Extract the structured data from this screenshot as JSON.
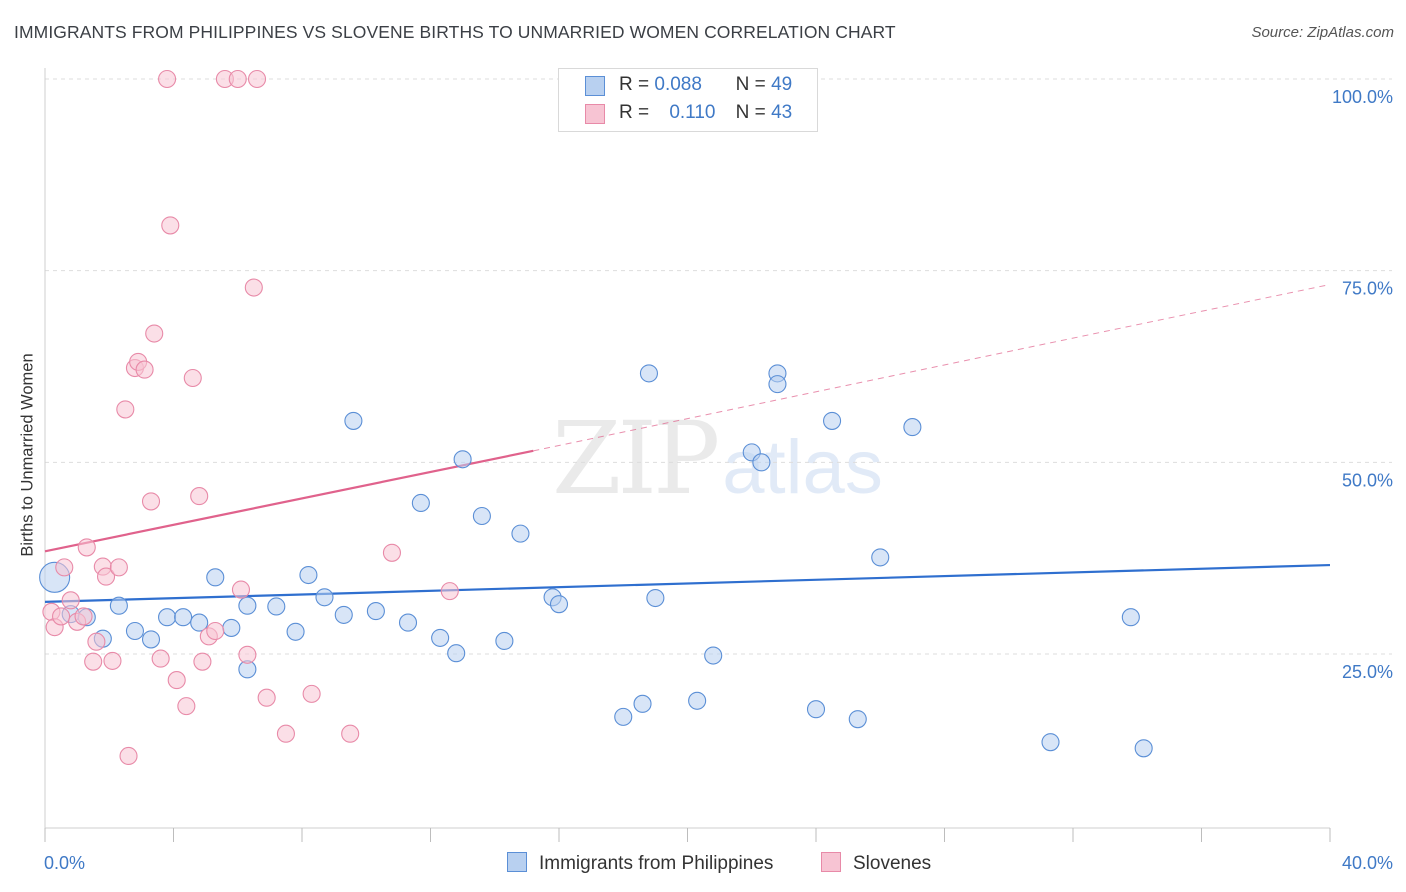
{
  "title": "IMMIGRANTS FROM PHILIPPINES VS SLOVENE BIRTHS TO UNMARRIED WOMEN CORRELATION CHART",
  "source": "Source: ZipAtlas.com",
  "watermark": {
    "zip": "ZIP",
    "atlas": "atlas"
  },
  "colors": {
    "blue_fill": "#b8d0f0",
    "blue_stroke": "#5b8fd6",
    "blue_line": "#2f6fcf",
    "pink_fill": "#f7c4d3",
    "pink_stroke": "#e88aa8",
    "pink_line": "#e0628c",
    "tick_text": "#3f79c6",
    "grid": "#dddddd"
  },
  "legend": {
    "r_label": "R =",
    "n_label": "N =",
    "rows": [
      {
        "r": "0.088",
        "n": "49"
      },
      {
        "r": "0.110",
        "n": "43"
      }
    ]
  },
  "bottom_legend": [
    {
      "label": "Immigrants from Philippines"
    },
    {
      "label": "Slovenes"
    }
  ],
  "chart_data": {
    "type": "scatter",
    "title": "IMMIGRANTS FROM PHILIPPINES VS SLOVENE BIRTHS TO UNMARRIED WOMEN CORRELATION CHART",
    "xlabel": "",
    "ylabel": "Births to Unmarried Women",
    "xlim": [
      0,
      40
    ],
    "ylim": [
      0,
      103
    ],
    "x_tick_labels": [
      "0.0%",
      "40.0%"
    ],
    "y_ticks": [
      25,
      50,
      75,
      100
    ],
    "y_tick_labels": [
      "25.0%",
      "50.0%",
      "75.0%",
      "100.0%"
    ],
    "grid": true,
    "legend_position": "top-center",
    "series": [
      {
        "name": "Immigrants from Philippines",
        "color": "#b8d0f0",
        "trend": {
          "x": [
            0,
            40
          ],
          "y": [
            31.8,
            36.6
          ],
          "extrapolated": false
        },
        "points": [
          {
            "x": 0.3,
            "y": 35.0,
            "big": true
          },
          {
            "x": 0.8,
            "y": 30.2
          },
          {
            "x": 1.3,
            "y": 29.8
          },
          {
            "x": 1.8,
            "y": 27.0
          },
          {
            "x": 2.3,
            "y": 31.3
          },
          {
            "x": 2.8,
            "y": 28.0
          },
          {
            "x": 3.3,
            "y": 26.9
          },
          {
            "x": 3.8,
            "y": 29.8
          },
          {
            "x": 4.3,
            "y": 29.8
          },
          {
            "x": 4.8,
            "y": 29.1
          },
          {
            "x": 5.3,
            "y": 35.0
          },
          {
            "x": 5.8,
            "y": 28.4
          },
          {
            "x": 6.3,
            "y": 23.0
          },
          {
            "x": 6.3,
            "y": 31.3
          },
          {
            "x": 7.2,
            "y": 31.2
          },
          {
            "x": 7.8,
            "y": 27.9
          },
          {
            "x": 8.2,
            "y": 35.3
          },
          {
            "x": 8.7,
            "y": 32.4
          },
          {
            "x": 9.3,
            "y": 30.1
          },
          {
            "x": 9.6,
            "y": 55.4
          },
          {
            "x": 10.3,
            "y": 30.6
          },
          {
            "x": 11.3,
            "y": 29.1
          },
          {
            "x": 11.7,
            "y": 44.7
          },
          {
            "x": 12.3,
            "y": 27.1
          },
          {
            "x": 12.8,
            "y": 25.1
          },
          {
            "x": 13.0,
            "y": 50.4
          },
          {
            "x": 13.6,
            "y": 43.0
          },
          {
            "x": 14.3,
            "y": 26.7
          },
          {
            "x": 14.8,
            "y": 40.7
          },
          {
            "x": 15.8,
            "y": 32.4
          },
          {
            "x": 16.0,
            "y": 31.5
          },
          {
            "x": 18.0,
            "y": 16.8
          },
          {
            "x": 18.6,
            "y": 18.5
          },
          {
            "x": 18.8,
            "y": 61.6
          },
          {
            "x": 19.0,
            "y": 32.3
          },
          {
            "x": 20.3,
            "y": 18.9
          },
          {
            "x": 20.8,
            "y": 24.8
          },
          {
            "x": 22.0,
            "y": 51.3
          },
          {
            "x": 22.3,
            "y": 50.0
          },
          {
            "x": 22.8,
            "y": 61.6
          },
          {
            "x": 22.8,
            "y": 60.2
          },
          {
            "x": 24.0,
            "y": 17.8
          },
          {
            "x": 24.5,
            "y": 55.4
          },
          {
            "x": 25.3,
            "y": 16.5
          },
          {
            "x": 26.0,
            "y": 37.6
          },
          {
            "x": 27.0,
            "y": 54.6
          },
          {
            "x": 31.3,
            "y": 13.5
          },
          {
            "x": 33.8,
            "y": 29.8
          },
          {
            "x": 34.2,
            "y": 12.7
          }
        ]
      },
      {
        "name": "Slovenes",
        "color": "#f7c4d3",
        "trend": {
          "x": [
            0,
            15.2
          ],
          "y": [
            38.4,
            51.5
          ],
          "dashed_x": [
            15.2,
            40
          ],
          "dashed_y": [
            51.5,
            73.2
          ]
        },
        "points": [
          {
            "x": 0.2,
            "y": 30.5
          },
          {
            "x": 0.3,
            "y": 28.5
          },
          {
            "x": 0.5,
            "y": 29.9
          },
          {
            "x": 0.6,
            "y": 36.3
          },
          {
            "x": 0.8,
            "y": 32.0
          },
          {
            "x": 1.0,
            "y": 29.2
          },
          {
            "x": 1.2,
            "y": 29.9
          },
          {
            "x": 1.3,
            "y": 38.9
          },
          {
            "x": 1.5,
            "y": 24.0
          },
          {
            "x": 1.6,
            "y": 26.6
          },
          {
            "x": 1.8,
            "y": 36.4
          },
          {
            "x": 1.9,
            "y": 35.1
          },
          {
            "x": 2.1,
            "y": 24.1
          },
          {
            "x": 2.3,
            "y": 36.3
          },
          {
            "x": 2.5,
            "y": 56.9
          },
          {
            "x": 2.6,
            "y": 11.7
          },
          {
            "x": 2.8,
            "y": 62.3
          },
          {
            "x": 2.9,
            "y": 63.1
          },
          {
            "x": 3.1,
            "y": 62.1
          },
          {
            "x": 3.3,
            "y": 44.9
          },
          {
            "x": 3.4,
            "y": 66.8
          },
          {
            "x": 3.6,
            "y": 24.4
          },
          {
            "x": 3.8,
            "y": 100.0
          },
          {
            "x": 3.9,
            "y": 80.9
          },
          {
            "x": 4.1,
            "y": 21.6
          },
          {
            "x": 4.4,
            "y": 18.2
          },
          {
            "x": 4.6,
            "y": 61.0
          },
          {
            "x": 4.8,
            "y": 45.6
          },
          {
            "x": 4.9,
            "y": 24.0
          },
          {
            "x": 5.1,
            "y": 27.3
          },
          {
            "x": 5.3,
            "y": 28.0
          },
          {
            "x": 5.6,
            "y": 100.0
          },
          {
            "x": 6.0,
            "y": 100.0
          },
          {
            "x": 6.1,
            "y": 33.4
          },
          {
            "x": 6.3,
            "y": 24.9
          },
          {
            "x": 6.5,
            "y": 72.8
          },
          {
            "x": 6.6,
            "y": 100.0
          },
          {
            "x": 6.9,
            "y": 19.3
          },
          {
            "x": 7.5,
            "y": 14.6
          },
          {
            "x": 8.3,
            "y": 19.8
          },
          {
            "x": 9.5,
            "y": 14.6
          },
          {
            "x": 10.8,
            "y": 38.2
          },
          {
            "x": 12.6,
            "y": 33.2
          }
        ]
      }
    ]
  }
}
